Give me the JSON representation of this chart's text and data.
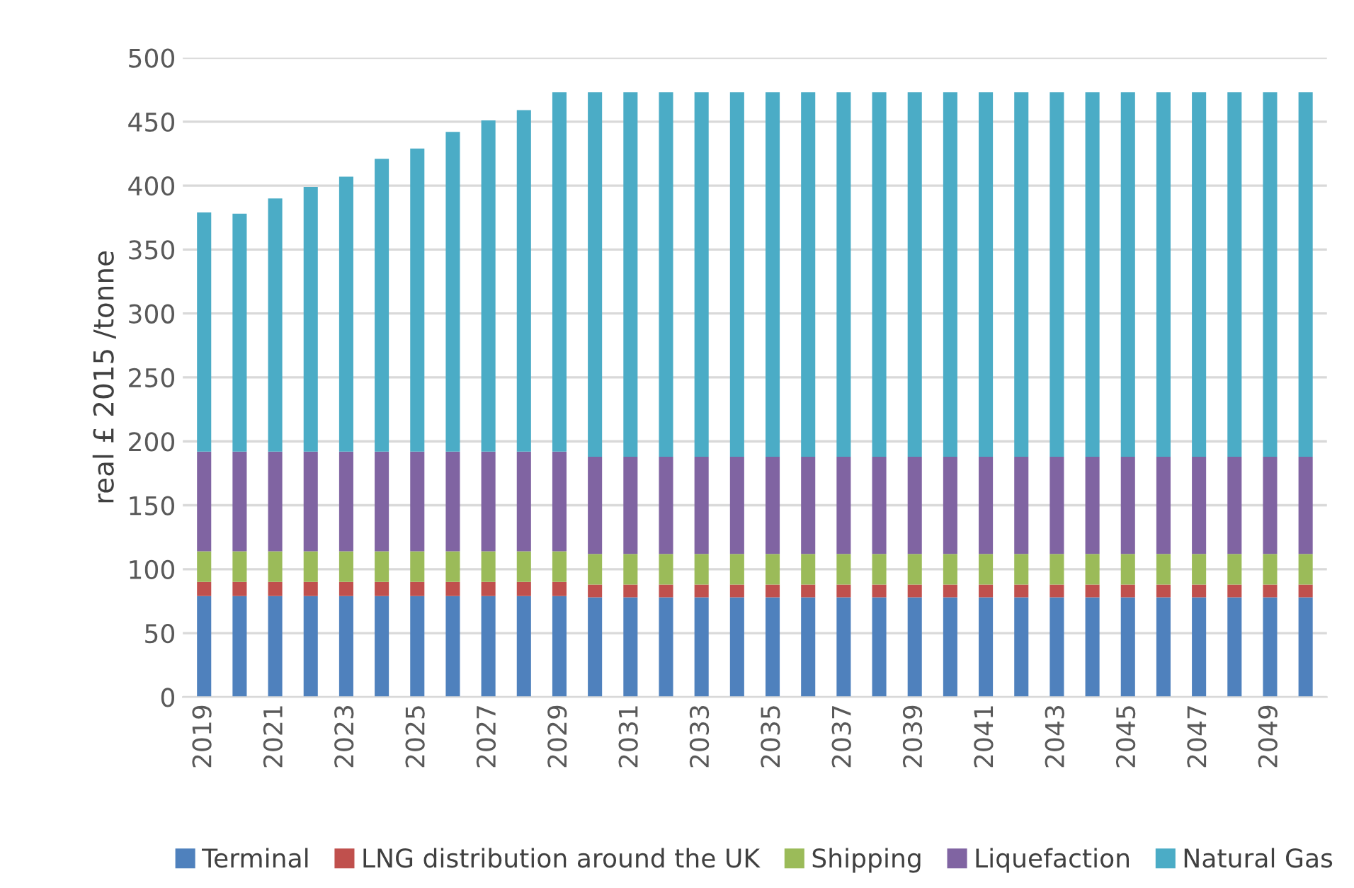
{
  "chart_data": {
    "type": "bar",
    "stacked": true,
    "ylabel": "real £ 2015 /tonne",
    "categories": [
      "2019",
      null,
      "2021",
      null,
      "2023",
      null,
      "2025",
      null,
      "2027",
      null,
      "2029",
      null,
      "2031",
      null,
      "2033",
      null,
      "2035",
      null,
      "2037",
      null,
      "2039",
      null,
      "2041",
      null,
      "2043",
      null,
      "2045",
      null,
      "2047",
      null,
      "2049",
      null
    ],
    "series": [
      {
        "name": "Terminal",
        "color": "#4f81bd",
        "values": [
          79,
          79,
          79,
          79,
          79,
          79,
          79,
          79,
          79,
          79,
          79,
          78,
          78,
          78,
          78,
          78,
          78,
          78,
          78,
          78,
          78,
          78,
          78,
          78,
          78,
          78,
          78,
          78,
          78,
          78,
          78,
          78
        ]
      },
      {
        "name": "LNG distribution around the UK",
        "color": "#c0504d",
        "values": [
          11,
          11,
          11,
          11,
          11,
          11,
          11,
          11,
          11,
          11,
          11,
          10,
          10,
          10,
          10,
          10,
          10,
          10,
          10,
          10,
          10,
          10,
          10,
          10,
          10,
          10,
          10,
          10,
          10,
          10,
          10,
          10
        ]
      },
      {
        "name": "Shipping",
        "color": "#9bbb59",
        "values": [
          24,
          24,
          24,
          24,
          24,
          24,
          24,
          24,
          24,
          24,
          24,
          24,
          24,
          24,
          24,
          24,
          24,
          24,
          24,
          24,
          24,
          24,
          24,
          24,
          24,
          24,
          24,
          24,
          24,
          24,
          24,
          24
        ]
      },
      {
        "name": "Liquefaction",
        "color": "#8064a2",
        "values": [
          78,
          78,
          78,
          78,
          78,
          78,
          78,
          78,
          78,
          78,
          78,
          76,
          76,
          76,
          76,
          76,
          76,
          76,
          76,
          76,
          76,
          76,
          76,
          76,
          76,
          76,
          76,
          76,
          76,
          76,
          76,
          76
        ]
      },
      {
        "name": "Natural Gas",
        "color": "#4bacc6",
        "values": [
          187,
          186,
          198,
          207,
          215,
          229,
          237,
          250,
          259,
          267,
          281,
          285,
          285,
          285,
          285,
          285,
          285,
          285,
          285,
          285,
          285,
          285,
          285,
          285,
          285,
          285,
          285,
          285,
          285,
          285,
          285,
          285
        ]
      }
    ],
    "ylim": [
      0,
      500
    ],
    "yticks": [
      0,
      50,
      100,
      150,
      200,
      250,
      300,
      350,
      400,
      450,
      500
    ],
    "grid": "y",
    "legend": "bottom"
  }
}
